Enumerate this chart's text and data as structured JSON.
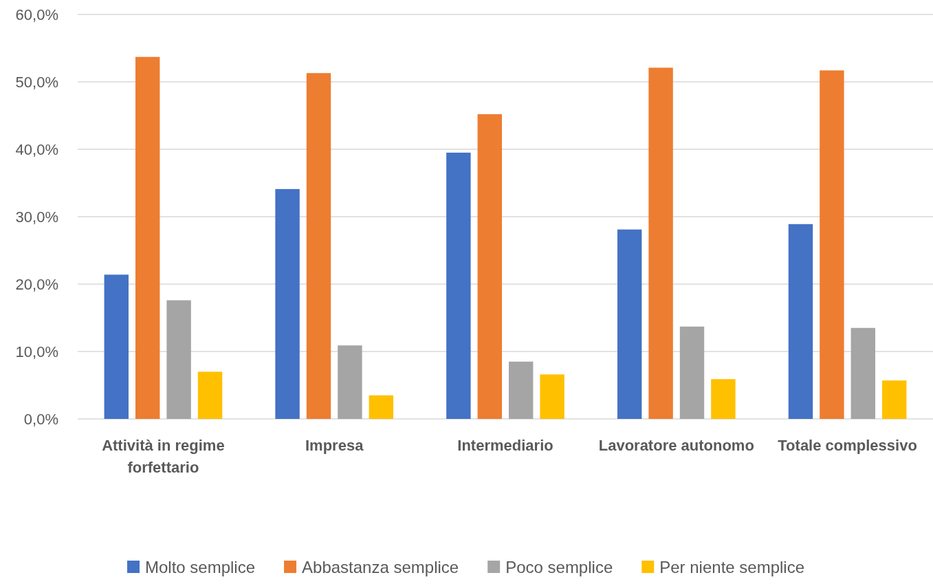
{
  "chart_data": {
    "type": "bar",
    "categories": [
      "Attività in regime forfettario",
      "Impresa",
      "Intermediario",
      "Lavoratore autonomo",
      "Totale complessivo"
    ],
    "series": [
      {
        "name": "Molto semplice",
        "color": "#4472c4",
        "values": [
          21.4,
          34.1,
          39.5,
          28.1,
          28.9
        ]
      },
      {
        "name": "Abbastanza semplice",
        "color": "#ed7d31",
        "values": [
          53.7,
          51.3,
          45.2,
          52.1,
          51.7
        ]
      },
      {
        "name": "Poco semplice",
        "color": "#a5a5a5",
        "values": [
          17.6,
          10.9,
          8.5,
          13.7,
          13.5
        ]
      },
      {
        "name": "Per niente semplice",
        "color": "#ffc000",
        "values": [
          7.0,
          3.5,
          6.6,
          5.9,
          5.7
        ]
      }
    ],
    "ylim": [
      0,
      60
    ],
    "yticks": [
      {
        "value": 0,
        "label": "0,0%"
      },
      {
        "value": 10,
        "label": "10,0%"
      },
      {
        "value": 20,
        "label": "20,0%"
      },
      {
        "value": 30,
        "label": "30,0%"
      },
      {
        "value": 40,
        "label": "40,0%"
      },
      {
        "value": 50,
        "label": "50,0%"
      },
      {
        "value": 60,
        "label": "60,0%"
      }
    ],
    "grid": "y",
    "legend": "bottom"
  }
}
